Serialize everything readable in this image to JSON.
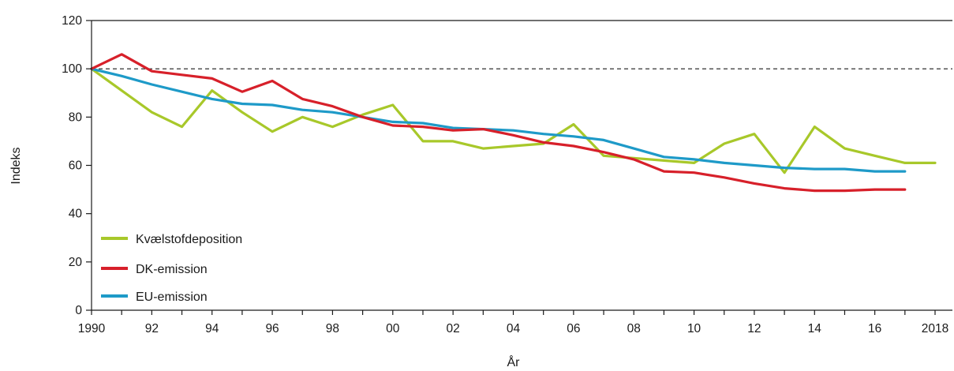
{
  "chart_data": {
    "type": "line",
    "title": "",
    "xlabel": "År",
    "ylabel": "Indeks",
    "ylim": [
      0,
      120
    ],
    "xlim": [
      1990,
      2018
    ],
    "yticks": [
      0,
      20,
      40,
      60,
      80,
      100,
      120
    ],
    "xticks": [
      {
        "value": 1990,
        "label": "1990"
      },
      {
        "value": 1992,
        "label": "92"
      },
      {
        "value": 1994,
        "label": "94"
      },
      {
        "value": 1996,
        "label": "96"
      },
      {
        "value": 1998,
        "label": "98"
      },
      {
        "value": 2000,
        "label": "00"
      },
      {
        "value": 2002,
        "label": "02"
      },
      {
        "value": 2004,
        "label": "04"
      },
      {
        "value": 2006,
        "label": "06"
      },
      {
        "value": 2008,
        "label": "08"
      },
      {
        "value": 2010,
        "label": "10"
      },
      {
        "value": 2012,
        "label": "12"
      },
      {
        "value": 2014,
        "label": "14"
      },
      {
        "value": 2016,
        "label": "16"
      },
      {
        "value": 2018,
        "label": "2018"
      }
    ],
    "reference_line": {
      "y": 100,
      "style": "dashed"
    },
    "grid": false,
    "legend_position": "bottom-left",
    "series": [
      {
        "name": "Kvælstofdeposition",
        "color": "#a8c82a",
        "x": [
          1990,
          1991,
          1992,
          1993,
          1994,
          1995,
          1996,
          1997,
          1998,
          1999,
          2000,
          2001,
          2002,
          2003,
          2004,
          2005,
          2006,
          2007,
          2008,
          2009,
          2010,
          2011,
          2012,
          2013,
          2014,
          2015,
          2016,
          2017,
          2018
        ],
        "values": [
          100,
          91,
          82,
          76,
          91,
          82,
          74,
          80,
          76,
          81,
          85,
          70,
          70,
          67,
          68,
          69,
          77,
          64,
          63,
          62,
          61,
          69,
          73,
          57,
          76,
          67,
          64,
          61,
          61
        ]
      },
      {
        "name": "DK-emission",
        "color": "#d7202a",
        "x": [
          1990,
          1991,
          1992,
          1993,
          1994,
          1995,
          1996,
          1997,
          1998,
          1999,
          2000,
          2001,
          2002,
          2003,
          2004,
          2005,
          2006,
          2007,
          2008,
          2009,
          2010,
          2011,
          2012,
          2013,
          2014,
          2015,
          2016,
          2017
        ],
        "values": [
          100,
          106,
          99,
          97.5,
          96,
          90.5,
          95,
          87.5,
          84.5,
          80,
          76.5,
          76,
          74.5,
          75,
          72.5,
          69.5,
          68,
          65.5,
          62.5,
          57.5,
          57,
          55,
          52.5,
          50.5,
          49.5,
          49.5,
          50,
          50
        ]
      },
      {
        "name": "EU-emission",
        "color": "#1e9ac8",
        "x": [
          1990,
          1991,
          1992,
          1993,
          1994,
          1995,
          1996,
          1997,
          1998,
          1999,
          2000,
          2001,
          2002,
          2003,
          2004,
          2005,
          2006,
          2007,
          2008,
          2009,
          2010,
          2011,
          2012,
          2013,
          2014,
          2015,
          2016,
          2017
        ],
        "values": [
          100,
          97,
          93.5,
          90.5,
          87.5,
          85.5,
          85,
          83,
          82,
          80,
          78,
          77.5,
          75.5,
          75,
          74.5,
          73,
          72,
          70.5,
          67,
          63.5,
          62.5,
          61,
          60,
          59,
          58.5,
          58.5,
          57.5,
          57.5
        ]
      }
    ]
  }
}
